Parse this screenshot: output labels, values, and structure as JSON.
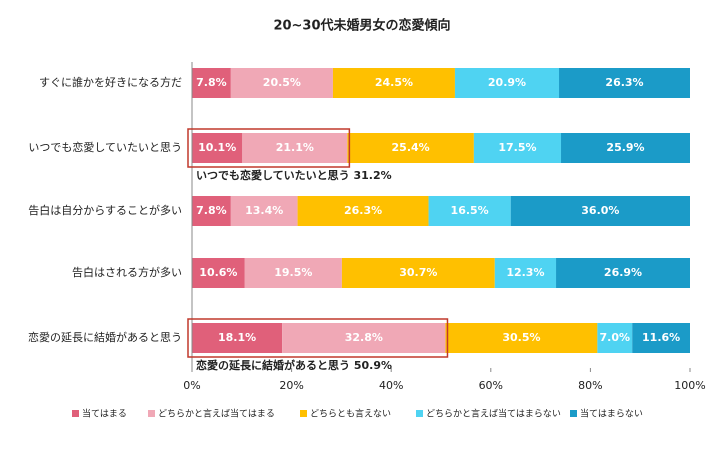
{
  "chart_data": {
    "type": "stacked-bar-horizontal",
    "title": "20~30代未婚男女の恋愛傾向",
    "categories": [
      "すぐに誰かを好きになる方だ",
      "いつでも恋愛していたいと思う",
      "告白は自分からすることが多い",
      "告白はされる方が多い",
      "恋愛の延長に結婚があると思う"
    ],
    "series": [
      {
        "name": "当てはまる",
        "color": "#e0607a",
        "values": [
          7.8,
          10.1,
          7.8,
          10.6,
          18.1
        ],
        "value_labels": [
          "7.8%",
          "10.1%",
          "7.8%",
          "10.6%",
          "18.1%"
        ]
      },
      {
        "name": "どちらかと言えば当てはまる",
        "color": "#f0a8b6",
        "values": [
          20.5,
          21.1,
          13.4,
          19.5,
          32.8
        ],
        "value_labels": [
          "20.5%",
          "21.1%",
          "13.4%",
          "19.5%",
          "32.8%"
        ]
      },
      {
        "name": "どちらとも言えない",
        "color": "#ffc000",
        "values": [
          24.5,
          25.4,
          26.3,
          30.7,
          30.5
        ],
        "value_labels": [
          "24.5%",
          "25.4%",
          "26.3%",
          "30.7%",
          "30.5%"
        ]
      },
      {
        "name": "どちらかと言えば当てはまらない",
        "color": "#4fd3f2",
        "values": [
          20.9,
          17.5,
          16.5,
          12.3,
          7.0
        ],
        "value_labels": [
          "20.9%",
          "17.5%",
          "16.5%",
          "12.3%",
          "7.0%"
        ]
      },
      {
        "name": "当てはまらない",
        "color": "#1b9bc8",
        "values": [
          26.3,
          25.9,
          36.0,
          26.9,
          11.6
        ],
        "value_labels": [
          "26.3%",
          "25.9%",
          "36.0%",
          "26.9%",
          "11.6%"
        ]
      }
    ],
    "xlim": [
      0,
      100
    ],
    "xticks": [
      {
        "value": 0,
        "label": "0%"
      },
      {
        "value": 20,
        "label": "20%"
      },
      {
        "value": 40,
        "label": "40%"
      },
      {
        "value": 60,
        "label": "60%"
      },
      {
        "value": 80,
        "label": "80%"
      },
      {
        "value": 100,
        "label": "100%"
      }
    ],
    "annotations": [
      "いつでも恋愛していたいと思う 31.2%",
      "恋愛の延長に結婚があると思う 50.9%"
    ],
    "legend": "bottom"
  }
}
